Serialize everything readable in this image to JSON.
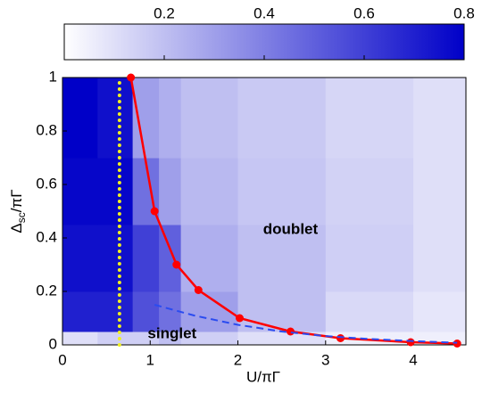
{
  "chart_data": {
    "type": "heatmap",
    "xlabel": "U/πΓ",
    "ylabel": [
      "Δ",
      "sc",
      "/πΓ"
    ],
    "xlim": [
      0,
      4.6
    ],
    "xticks": [
      0,
      1,
      2,
      3,
      4
    ],
    "ylim": [
      0,
      1
    ],
    "yticks": [
      0,
      0.2,
      0.4,
      0.6,
      0.8,
      1
    ],
    "clim": [
      0,
      0.8
    ],
    "cticks": [
      0.2,
      0.4,
      0.6,
      0.8
    ],
    "colormap": [
      "#ffffff",
      "#0000c8"
    ],
    "x_bins": [
      0,
      0.4,
      0.8,
      1.1,
      1.35,
      2,
      3,
      4,
      4.6
    ],
    "y_bins": [
      0,
      0.05,
      0.2,
      0.45,
      0.7,
      1
    ],
    "z": [
      [
        0.1,
        0.15,
        0.15,
        0.2,
        0.15,
        0.1,
        0.05,
        0.05
      ],
      [
        0.7,
        0.7,
        0.55,
        0.45,
        0.3,
        0.2,
        0.12,
        0.08
      ],
      [
        0.75,
        0.75,
        0.6,
        0.5,
        0.25,
        0.2,
        0.15,
        0.1
      ],
      [
        0.78,
        0.78,
        0.45,
        0.3,
        0.22,
        0.18,
        0.14,
        0.1
      ],
      [
        0.8,
        0.75,
        0.3,
        0.25,
        0.2,
        0.17,
        0.13,
        0.1
      ]
    ],
    "series": [
      {
        "color": "#ff0000",
        "style": "solid-markers",
        "x": [
          0.78,
          1.05,
          1.3,
          1.55,
          2.02,
          2.6,
          3.17,
          3.97,
          4.5
        ],
        "values": [
          1,
          0.5,
          0.3,
          0.205,
          0.1,
          0.05,
          0.025,
          0.01,
          0.005
        ]
      },
      {
        "color": "#2a4bf0",
        "style": "dashed",
        "x": [
          1.05,
          1.5,
          2,
          2.5,
          3,
          3.5,
          4,
          4.5
        ],
        "values": [
          0.15,
          0.11,
          0.075,
          0.05,
          0.033,
          0.022,
          0.014,
          0.008
        ]
      },
      {
        "color": "#f0f020",
        "style": "dotted",
        "x": [
          0.65,
          0.65
        ],
        "values": [
          0,
          1
        ]
      }
    ],
    "annotations": [
      {
        "text": "doublet",
        "x": 2.6,
        "y": 0.43
      },
      {
        "text": "singlet",
        "x": 1.25,
        "y": 0.04
      }
    ]
  }
}
